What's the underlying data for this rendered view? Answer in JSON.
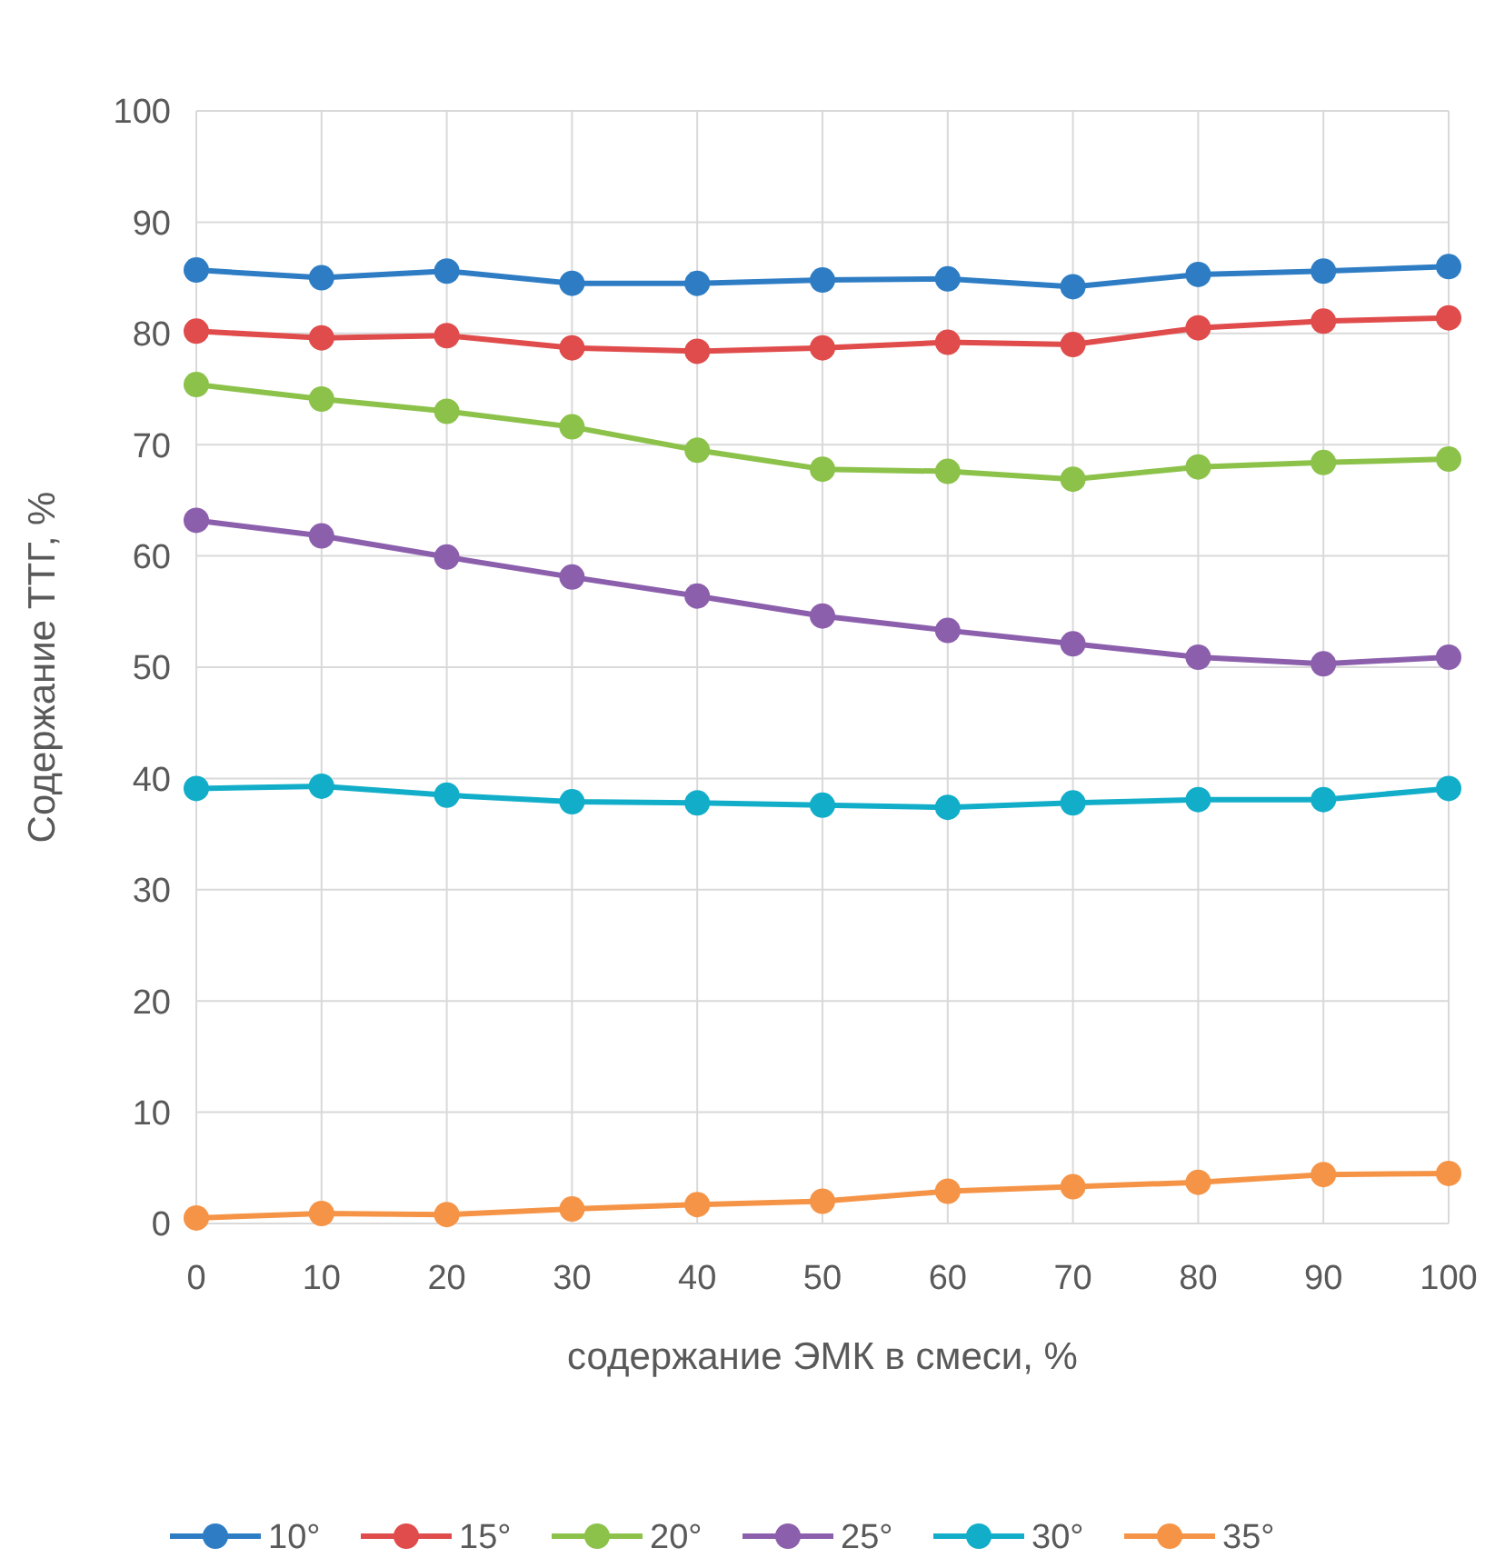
{
  "chart_data": {
    "type": "line",
    "xlabel": "содержание ЭМК в смеси, %",
    "ylabel": "Содержание ТТГ, %",
    "x": [
      0,
      10,
      20,
      30,
      40,
      50,
      60,
      70,
      80,
      90,
      100
    ],
    "xlim": [
      0,
      100
    ],
    "xticks": [
      0,
      10,
      20,
      30,
      40,
      50,
      60,
      70,
      80,
      90,
      100
    ],
    "ylim": [
      0,
      100
    ],
    "yticks": [
      0,
      10,
      20,
      30,
      40,
      50,
      60,
      70,
      80,
      90,
      100
    ],
    "grid": true,
    "legend": "bottom",
    "marker": "circle",
    "line_style": "solid",
    "series": [
      {
        "name": "10°",
        "color": "#2e7dc4",
        "values": [
          85.7,
          85,
          85.6,
          84.5,
          84.5,
          84.8,
          84.9,
          84.2,
          85.3,
          85.6,
          86
        ]
      },
      {
        "name": "15°",
        "color": "#e04b4b",
        "values": [
          80.2,
          79.6,
          79.8,
          78.7,
          78.4,
          78.7,
          79.2,
          79,
          80.5,
          81.1,
          81.4
        ]
      },
      {
        "name": "20°",
        "color": "#8cc24a",
        "values": [
          75.4,
          74.1,
          73,
          71.6,
          69.5,
          67.8,
          67.6,
          66.9,
          68,
          68.4,
          68.7
        ]
      },
      {
        "name": "25°",
        "color": "#8c5fad",
        "values": [
          63.2,
          61.8,
          59.9,
          58.1,
          56.4,
          54.6,
          53.3,
          52.1,
          50.9,
          50.3,
          50.9
        ]
      },
      {
        "name": "30°",
        "color": "#12aec9",
        "values": [
          39.1,
          39.3,
          38.5,
          37.9,
          37.8,
          37.6,
          37.4,
          37.8,
          38.1,
          38.1,
          39.1
        ]
      },
      {
        "name": "35°",
        "color": "#f59447",
        "values": [
          0.5,
          0.9,
          0.8,
          1.3,
          1.7,
          2,
          2.9,
          3.3,
          3.7,
          4.4,
          4.5
        ]
      }
    ]
  }
}
